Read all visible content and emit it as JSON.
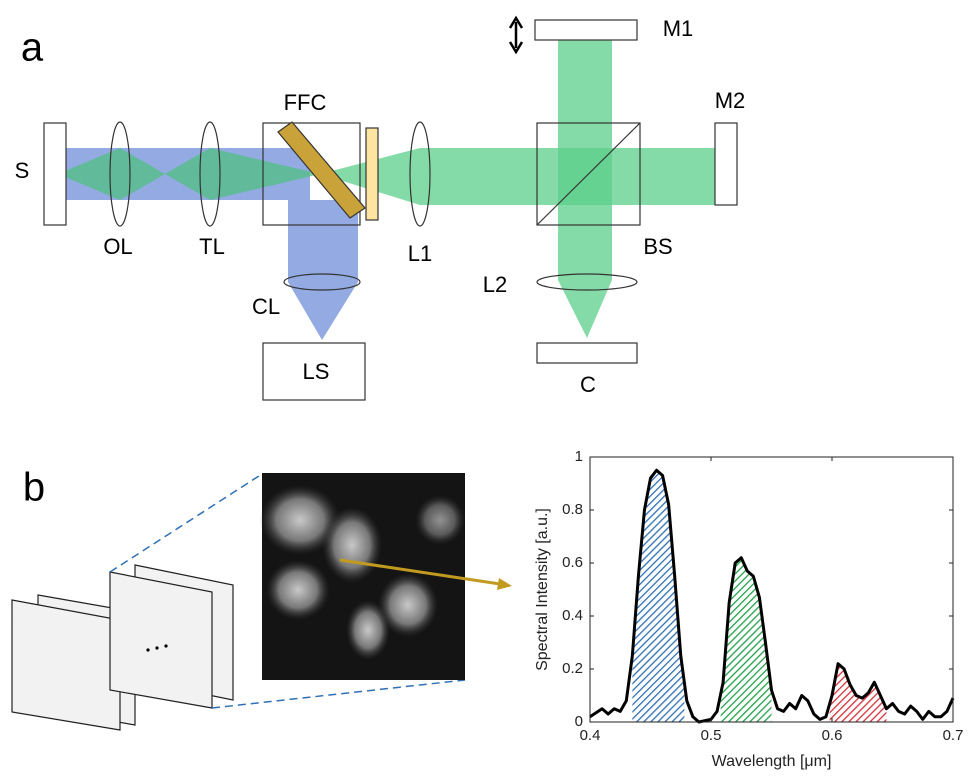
{
  "panel_a": {
    "label": "a",
    "labels": [
      "M1",
      "FFC",
      "M2",
      "S",
      "OL",
      "TL",
      "L1",
      "BS",
      "L2",
      "CL",
      "LS",
      "C"
    ]
  },
  "panel_b": {
    "label": "b"
  },
  "chart_data": {
    "type": "line",
    "x_label": "Wavelength [μm]",
    "y_label": "Spectral Intensity [a.u.]",
    "x": [
      0.4,
      0.41,
      0.415,
      0.42,
      0.425,
      0.43,
      0.435,
      0.44,
      0.445,
      0.45,
      0.455,
      0.46,
      0.465,
      0.47,
      0.475,
      0.48,
      0.485,
      0.49,
      0.5,
      0.505,
      0.51,
      0.515,
      0.52,
      0.525,
      0.53,
      0.535,
      0.54,
      0.545,
      0.55,
      0.555,
      0.56,
      0.565,
      0.57,
      0.575,
      0.58,
      0.585,
      0.59,
      0.595,
      0.6,
      0.605,
      0.61,
      0.615,
      0.62,
      0.625,
      0.63,
      0.635,
      0.64,
      0.645,
      0.65,
      0.655,
      0.66,
      0.665,
      0.67,
      0.675,
      0.68,
      0.685,
      0.69,
      0.695,
      0.7
    ],
    "values": [
      0.02,
      0.05,
      0.03,
      0.05,
      0.04,
      0.08,
      0.25,
      0.55,
      0.8,
      0.92,
      0.95,
      0.93,
      0.82,
      0.55,
      0.25,
      0.08,
      0.02,
      0.0,
      0.01,
      0.04,
      0.15,
      0.45,
      0.6,
      0.62,
      0.57,
      0.55,
      0.47,
      0.3,
      0.12,
      0.05,
      0.04,
      0.07,
      0.05,
      0.1,
      0.08,
      0.03,
      0.01,
      0.02,
      0.1,
      0.22,
      0.2,
      0.14,
      0.1,
      0.09,
      0.11,
      0.15,
      0.1,
      0.05,
      0.07,
      0.04,
      0.03,
      0.06,
      0.04,
      0.01,
      0.04,
      0.02,
      0.02,
      0.04,
      0.09
    ],
    "color": "#000000",
    "highlights": [
      {
        "from": 0.435,
        "to": 0.478,
        "color": "#2f6fb5"
      },
      {
        "from": 0.508,
        "to": 0.55,
        "color": "#21a04a"
      },
      {
        "from": 0.598,
        "to": 0.645,
        "color": "#d6303a"
      }
    ],
    "xlim": [
      0.4,
      0.7
    ],
    "ylim": [
      0,
      1
    ],
    "xticks": [
      0.4,
      0.5,
      0.6,
      0.7
    ],
    "yticks": [
      0,
      0.2,
      0.4,
      0.6,
      0.8,
      1
    ],
    "grid": false
  }
}
